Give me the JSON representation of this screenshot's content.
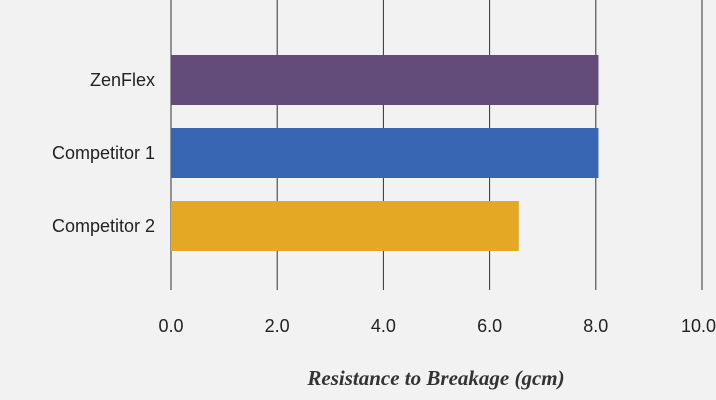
{
  "chart_data": {
    "type": "bar",
    "orientation": "horizontal",
    "categories": [
      "ZenFlex",
      "Competitor 1",
      "Competitor 2"
    ],
    "values": [
      8.05,
      8.05,
      6.55
    ],
    "colors": [
      "#634c7a",
      "#3866b2",
      "#e5a824"
    ],
    "xlabel": "Resistance to Breakage (gcm)",
    "ylabel": "",
    "xlim": [
      0,
      10
    ],
    "xticks": [
      0,
      2,
      4,
      6,
      8,
      10
    ],
    "xtick_labels": [
      "0.0",
      "2.0",
      "4.0",
      "6.0",
      "8.0",
      "10.0"
    ],
    "grid": "vertical",
    "background": "#f2f2f2"
  }
}
